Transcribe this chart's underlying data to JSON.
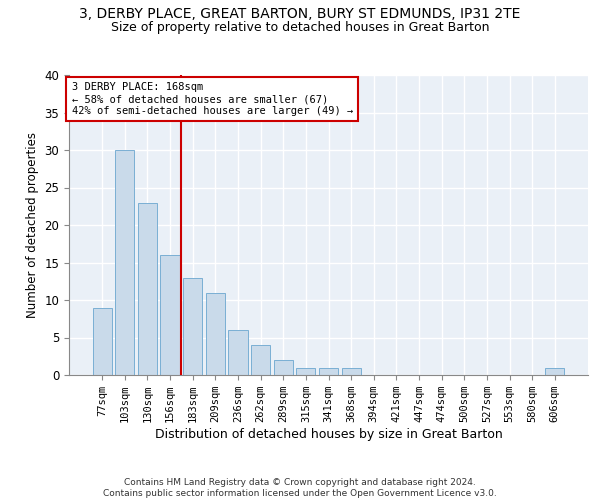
{
  "title_line1": "3, DERBY PLACE, GREAT BARTON, BURY ST EDMUNDS, IP31 2TE",
  "title_line2": "Size of property relative to detached houses in Great Barton",
  "xlabel": "Distribution of detached houses by size in Great Barton",
  "ylabel": "Number of detached properties",
  "bar_labels": [
    "77sqm",
    "103sqm",
    "130sqm",
    "156sqm",
    "183sqm",
    "209sqm",
    "236sqm",
    "262sqm",
    "289sqm",
    "315sqm",
    "341sqm",
    "368sqm",
    "394sqm",
    "421sqm",
    "447sqm",
    "474sqm",
    "500sqm",
    "527sqm",
    "553sqm",
    "580sqm",
    "606sqm"
  ],
  "bar_values": [
    9,
    30,
    23,
    16,
    13,
    11,
    6,
    4,
    2,
    1,
    1,
    1,
    0,
    0,
    0,
    0,
    0,
    0,
    0,
    0,
    1
  ],
  "bar_color": "#c9daea",
  "bar_edgecolor": "#7aafd4",
  "vline_x_index": 3.5,
  "vline_color": "#cc0000",
  "annotation_text": "3 DERBY PLACE: 168sqm\n← 58% of detached houses are smaller (67)\n42% of semi-detached houses are larger (49) →",
  "annotation_box_color": "#cc0000",
  "ylim": [
    0,
    40
  ],
  "yticks": [
    0,
    5,
    10,
    15,
    20,
    25,
    30,
    35,
    40
  ],
  "footer_text": "Contains HM Land Registry data © Crown copyright and database right 2024.\nContains public sector information licensed under the Open Government Licence v3.0.",
  "bg_color": "#eaf0f7",
  "grid_color": "#ffffff",
  "title_fontsize": 10,
  "subtitle_fontsize": 9,
  "bar_width": 0.85
}
